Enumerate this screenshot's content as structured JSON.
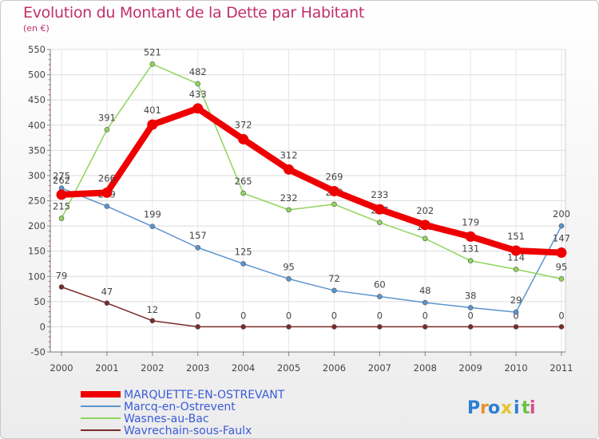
{
  "header": {
    "title": "Evolution du Montant de la Dette par Habitant",
    "subtitle": "(en €)"
  },
  "logo": {
    "text": "Proxiti",
    "letters": [
      "P",
      "r",
      "o",
      "x",
      "i",
      "t",
      "i"
    ],
    "colors": [
      "#2a7fd4",
      "#e8912a",
      "#2a7fd4",
      "#e8c32a",
      "#2a7fd4",
      "#6cc04a",
      "#e04a8a"
    ]
  },
  "chart_data": {
    "type": "line",
    "x": [
      "2000",
      "2001",
      "2002",
      "2003",
      "2004",
      "2005",
      "2006",
      "2007",
      "2008",
      "2009",
      "2010",
      "2011"
    ],
    "ylim": [
      -50,
      550
    ],
    "yticks": [
      -50,
      0,
      50,
      100,
      150,
      200,
      250,
      300,
      350,
      400,
      450,
      500,
      550
    ],
    "grid": true,
    "legend_position": "bottom-left",
    "series": [
      {
        "name": "Wavrechain-sous-Faulx",
        "color": "#7a2a2a",
        "width": 1.5,
        "values": [
          79,
          47,
          12,
          0,
          0,
          0,
          0,
          0,
          0,
          0,
          0,
          0
        ]
      },
      {
        "name": "Marcq-en-Ostrevent",
        "color": "#5b94d0",
        "width": 1.5,
        "values": [
          275,
          239,
          199,
          157,
          125,
          95,
          72,
          60,
          48,
          38,
          29,
          200
        ]
      },
      {
        "name": "Wasnes-au-Bac",
        "color": "#8ed55c",
        "width": 1.5,
        "values": [
          215,
          391,
          521,
          482,
          265,
          232,
          243,
          207,
          175,
          131,
          114,
          95
        ]
      },
      {
        "name": "MARQUETTE-EN-OSTREVANT",
        "color": "#ee0000",
        "width": 8,
        "values": [
          262,
          266,
          401,
          433,
          372,
          312,
          269,
          233,
          202,
          179,
          151,
          147
        ]
      }
    ],
    "legend_order": [
      "MARQUETTE-EN-OSTREVANT",
      "Marcq-en-Ostrevent",
      "Wasnes-au-Bac",
      "Wavrechain-sous-Faulx"
    ]
  }
}
